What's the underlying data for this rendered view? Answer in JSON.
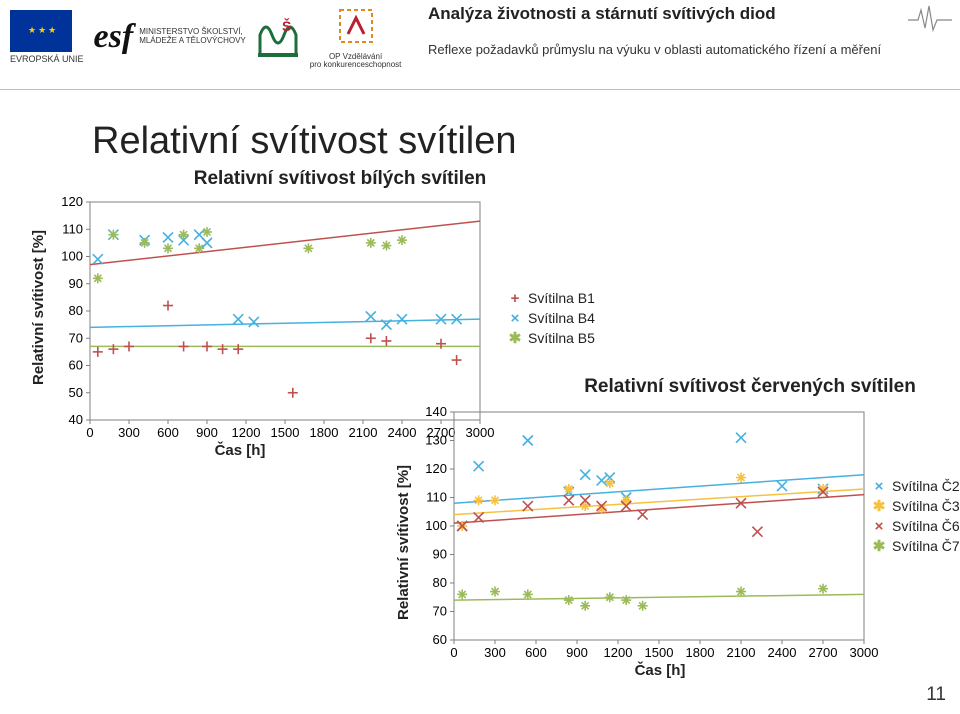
{
  "header": {
    "title": "Analýza životnosti a stárnutí svítivých diod",
    "subtitle": "Reflexe požadavků průmyslu na výuku v oblasti automatického řízení a měření",
    "eu_label": "EVROPSKÁ UNIE",
    "ms_label_1": "MINISTERSTVO ŠKOLSTVÍ,",
    "ms_label_2": "MLÁDEŽE A TĚLOVÝCHOVY",
    "op_label_1": "OP Vzdělávání",
    "op_label_2": "pro konkurenceschopnost"
  },
  "main_title": "Relativní svítivost svítilen",
  "page_number": "11",
  "chart1": {
    "type": "scatter+line",
    "title": "Relativní svítivost bílých svítilen",
    "ylabel": "Relativní svítivost [%]",
    "xlabel": "Čas [h]",
    "xlim": [
      0,
      3000
    ],
    "xtick_step": 300,
    "ylim": [
      40,
      120
    ],
    "ytick_step": 10,
    "axis_fontsize": 14,
    "tick_fontsize": 13,
    "title_fontsize": 19,
    "grid": false,
    "frame_color": "#808080",
    "tick_color": "#808080",
    "trend_lines": [
      {
        "color": "#c0504d",
        "y1": 97,
        "y2": 113,
        "width": 1.5
      },
      {
        "color": "#46b0e0",
        "y1": 74,
        "y2": 77,
        "width": 1.5
      },
      {
        "color": "#9bbb59",
        "y1": 67,
        "y2": 67,
        "width": 1.5
      }
    ],
    "series": [
      {
        "name": "Svítilna B1",
        "marker": "plus",
        "color": "#c0504d",
        "x": [
          60,
          180,
          300,
          600,
          720,
          900,
          1020,
          1140,
          1560,
          2160,
          2280,
          2700,
          2820
        ],
        "y": [
          65,
          66,
          67,
          82,
          67,
          67,
          66,
          66,
          50,
          70,
          69,
          68,
          62
        ]
      },
      {
        "name": "Svítilna B4",
        "marker": "x",
        "color": "#46b0e0",
        "x": [
          60,
          180,
          420,
          600,
          720,
          840,
          900,
          1140,
          1260,
          2160,
          2280,
          2400,
          2700,
          2820
        ],
        "y": [
          99,
          108,
          106,
          107,
          106,
          108,
          105,
          77,
          76,
          78,
          75,
          77,
          77,
          77
        ]
      },
      {
        "name": "Svítilna B5",
        "marker": "star",
        "color": "#9bbb59",
        "x": [
          60,
          180,
          420,
          600,
          720,
          840,
          900,
          1680,
          2160,
          2280,
          2400
        ],
        "y": [
          92,
          108,
          105,
          103,
          108,
          103,
          109,
          103,
          105,
          104,
          106
        ]
      }
    ],
    "legend": [
      {
        "label": "Svítilna B1",
        "marker": "+",
        "color": "#c0504d"
      },
      {
        "label": "Svítilna B4",
        "marker": "×",
        "color": "#46b0e0"
      },
      {
        "label": "Svítilna B5",
        "marker": "✱",
        "color": "#9bbb59"
      }
    ]
  },
  "chart2": {
    "type": "scatter+line",
    "title": "Relativní svítivost červených svítilen",
    "ylabel": "Relativní svítivost [%]",
    "xlabel": "Čas [h]",
    "xlim": [
      0,
      3000
    ],
    "xtick_step": 300,
    "ylim": [
      60,
      140
    ],
    "ytick_step": 10,
    "axis_fontsize": 14,
    "tick_fontsize": 13,
    "title_fontsize": 19,
    "grid": false,
    "frame_color": "#808080",
    "tick_color": "#808080",
    "trend_lines": [
      {
        "color": "#46b0e0",
        "y1": 108,
        "y2": 118,
        "width": 1.5
      },
      {
        "color": "#f6c142",
        "y1": 104,
        "y2": 113,
        "width": 1.5
      },
      {
        "color": "#c0504d",
        "y1": 101,
        "y2": 111,
        "width": 1.5
      },
      {
        "color": "#9bbb59",
        "y1": 74,
        "y2": 76,
        "width": 1.5
      }
    ],
    "series": [
      {
        "name": "Svítilna Č2",
        "marker": "x",
        "color": "#46b0e0",
        "x": [
          60,
          180,
          540,
          840,
          960,
          1080,
          1140,
          1260,
          2100,
          2400,
          2700
        ],
        "y": [
          100,
          121,
          130,
          112,
          118,
          116,
          117,
          110,
          131,
          114,
          113
        ]
      },
      {
        "name": "Svítilna Č3",
        "marker": "star",
        "color": "#f6c142",
        "x": [
          60,
          180,
          300,
          840,
          960,
          1080,
          1140,
          1260,
          2100,
          2700
        ],
        "y": [
          100,
          109,
          109,
          113,
          107,
          106,
          115,
          109,
          117,
          113
        ]
      },
      {
        "name": "Svítilna Č6",
        "marker": "x",
        "color": "#c0504d",
        "x": [
          60,
          180,
          540,
          840,
          960,
          1080,
          1260,
          1380,
          2100,
          2220,
          2700
        ],
        "y": [
          100,
          103,
          107,
          109,
          109,
          107,
          107,
          104,
          108,
          98,
          112
        ]
      },
      {
        "name": "Svítilna Č7",
        "marker": "star",
        "color": "#9bbb59",
        "x": [
          60,
          300,
          540,
          840,
          960,
          1140,
          1260,
          1380,
          2100,
          2700
        ],
        "y": [
          76,
          77,
          76,
          74,
          72,
          75,
          74,
          72,
          77,
          78
        ]
      }
    ],
    "legend": [
      {
        "label": "Svítilna Č2",
        "marker": "×",
        "color": "#46b0e0"
      },
      {
        "label": "Svítilna Č3",
        "marker": "✱",
        "color": "#f6c142"
      },
      {
        "label": "Svítilna Č6",
        "marker": "×",
        "color": "#c0504d"
      },
      {
        "label": "Svítilna Č7",
        "marker": "✱",
        "color": "#9bbb59"
      }
    ]
  }
}
